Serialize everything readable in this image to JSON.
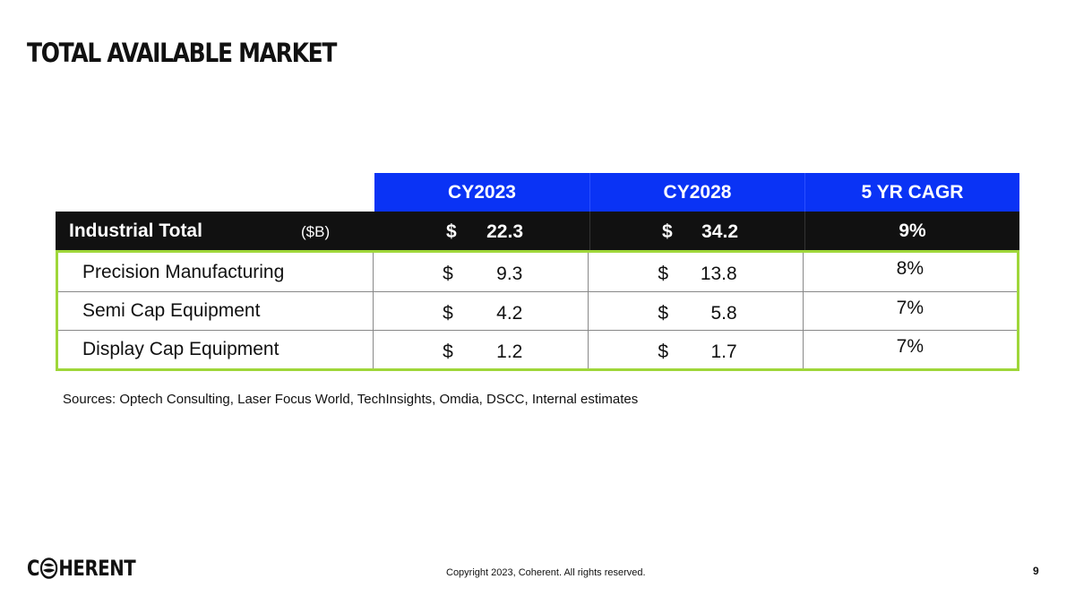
{
  "title": "TOTAL AVAILABLE MARKET",
  "table": {
    "headers": [
      "CY2023",
      "CY2028",
      "5 YR CAGR"
    ],
    "total": {
      "label": "Industrial Total",
      "unit": "($B)",
      "cy2023_currency": "$",
      "cy2023": "22.3",
      "cy2028_currency": "$",
      "cy2028": "34.2",
      "cagr": "9%"
    },
    "rows": [
      {
        "label": "Precision Manufacturing",
        "cy2023_currency": "$",
        "cy2023": "9.3",
        "cy2028_currency": "$",
        "cy2028": "13.8",
        "cagr": "8%"
      },
      {
        "label": "Semi Cap Equipment",
        "cy2023_currency": "$",
        "cy2023": "4.2",
        "cy2028_currency": "$",
        "cy2028": "5.8",
        "cagr": "7%"
      },
      {
        "label": "Display Cap Equipment",
        "cy2023_currency": "$",
        "cy2023": "1.2",
        "cy2028_currency": "$",
        "cy2028": "1.7",
        "cagr": "7%"
      }
    ]
  },
  "sources": "Sources: Optech Consulting, Laser Focus World, TechInsights, Omdia, DSCC, Internal estimates",
  "footer": {
    "logo_prefix": "C",
    "logo_suffix": "HERENT",
    "logo_icon": "globe-icon",
    "copyright": "Copyright 2023, Coherent. All rights reserved.",
    "page_number": "9"
  },
  "colors": {
    "header_blue": "#0a33f5",
    "total_black": "#111111",
    "highlight_green": "#9fd63a"
  }
}
